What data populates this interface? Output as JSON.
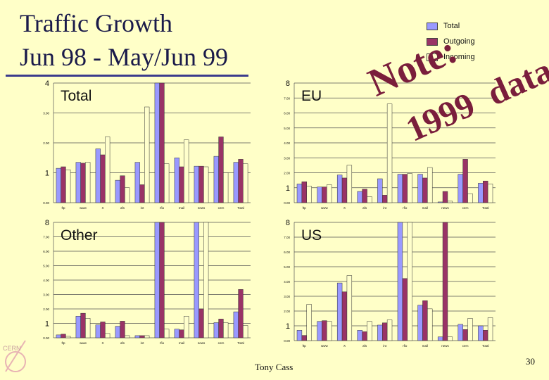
{
  "title_line1": "Traffic Growth",
  "title_line2": "Jun 98 - May/Jun 99",
  "legend": [
    {
      "label": "Total",
      "color": "#9999ff"
    },
    {
      "label": "Outgoing",
      "color": "#993366"
    },
    {
      "label": "Incoming",
      "color": "#ffffcc"
    }
  ],
  "stamp": {
    "line1": "Note:",
    "line2a": "1999",
    "line2b": "data"
  },
  "footer": {
    "name": "Tony Cass",
    "page": "30"
  },
  "colors": {
    "total": "#9999ff",
    "outgoing": "#993366",
    "incoming": "#ffffcc",
    "background": "#ffffc8",
    "title": "#1a1a4a"
  },
  "chart_data": [
    {
      "type": "bar",
      "title": "Total",
      "categories": [
        "ftp",
        "www",
        "X",
        "afs",
        "int",
        "rfio",
        "mail",
        "news",
        "cern",
        "Total"
      ],
      "ylim": [
        0,
        4
      ],
      "ytick_labels": [
        "4",
        "3.00",
        "2.00",
        "1",
        "0.00"
      ],
      "series": [
        {
          "name": "Total",
          "values": [
            1.15,
            1.35,
            1.8,
            0.75,
            1.35,
            4.0,
            1.5,
            1.22,
            1.55,
            1.35
          ]
        },
        {
          "name": "Outgoing",
          "values": [
            1.2,
            1.32,
            1.6,
            0.9,
            0.6,
            4.0,
            1.2,
            1.22,
            2.2,
            1.45
          ]
        },
        {
          "name": "Incoming",
          "values": [
            1.1,
            1.35,
            2.2,
            0.5,
            3.2,
            1.3,
            2.1,
            1.2,
            1.0,
            1.3
          ]
        }
      ]
    },
    {
      "type": "bar",
      "title": "EU",
      "categories": [
        "ftp",
        "www",
        "X",
        "afs",
        "int",
        "rfio",
        "mail",
        "news",
        "cern",
        "Total"
      ],
      "ylim": [
        0,
        8
      ],
      "ytick_labels": [
        "8",
        "7.00",
        "6.00",
        "5.00",
        "4.00",
        "3.00",
        "2.00",
        "1",
        "0.00"
      ],
      "series": [
        {
          "name": "Total",
          "values": [
            1.25,
            1.05,
            1.85,
            0.75,
            1.6,
            1.9,
            1.9,
            0.05,
            1.9,
            1.3
          ]
        },
        {
          "name": "Outgoing",
          "values": [
            1.4,
            1.05,
            1.65,
            0.9,
            0.5,
            1.9,
            1.65,
            0.75,
            2.9,
            1.45
          ]
        },
        {
          "name": "Incoming",
          "values": [
            1.1,
            1.2,
            2.5,
            0.4,
            6.6,
            1.95,
            2.35,
            0.1,
            0.6,
            1.25
          ]
        }
      ]
    },
    {
      "type": "bar",
      "title": "Other",
      "categories": [
        "ftp",
        "www",
        "X",
        "afs",
        "int",
        "rfio",
        "mail",
        "news",
        "cern",
        "Total"
      ],
      "ylim": [
        0,
        8
      ],
      "ytick_labels": [
        "8",
        "7.00",
        "6.00",
        "5.00",
        "4.00",
        "3.00",
        "2.00",
        "1",
        "0.00"
      ],
      "series": [
        {
          "name": "Total",
          "values": [
            0.2,
            1.5,
            0.9,
            0.8,
            0.15,
            8.0,
            0.6,
            8.0,
            1.05,
            1.8
          ]
        },
        {
          "name": "Outgoing",
          "values": [
            0.25,
            1.7,
            1.1,
            1.15,
            0.15,
            8.0,
            0.55,
            2.0,
            1.3,
            3.35
          ]
        },
        {
          "name": "Incoming",
          "values": [
            0.1,
            1.35,
            0.3,
            0.15,
            0.15,
            0.6,
            1.5,
            8.0,
            1.05,
            0.85
          ]
        }
      ]
    },
    {
      "type": "bar",
      "title": "US",
      "categories": [
        "ftp",
        "www",
        "X",
        "afs",
        "int",
        "rfio",
        "mail",
        "news",
        "cern",
        "Total"
      ],
      "ylim": [
        0,
        8
      ],
      "ytick_labels": [
        "8",
        "7.00",
        "6.00",
        "5.00",
        "4.00",
        "3.00",
        "2.00",
        "1",
        "0.00"
      ],
      "series": [
        {
          "name": "Total",
          "values": [
            0.7,
            1.3,
            3.9,
            0.7,
            1.05,
            8.0,
            2.4,
            0.25,
            1.1,
            1.0
          ]
        },
        {
          "name": "Outgoing",
          "values": [
            0.35,
            1.35,
            3.3,
            0.6,
            1.2,
            4.2,
            2.7,
            8.0,
            0.75,
            0.7
          ]
        },
        {
          "name": "Incoming",
          "values": [
            2.45,
            1.3,
            4.4,
            1.3,
            1.4,
            8.0,
            2.15,
            0.25,
            1.5,
            1.55
          ]
        }
      ]
    }
  ]
}
